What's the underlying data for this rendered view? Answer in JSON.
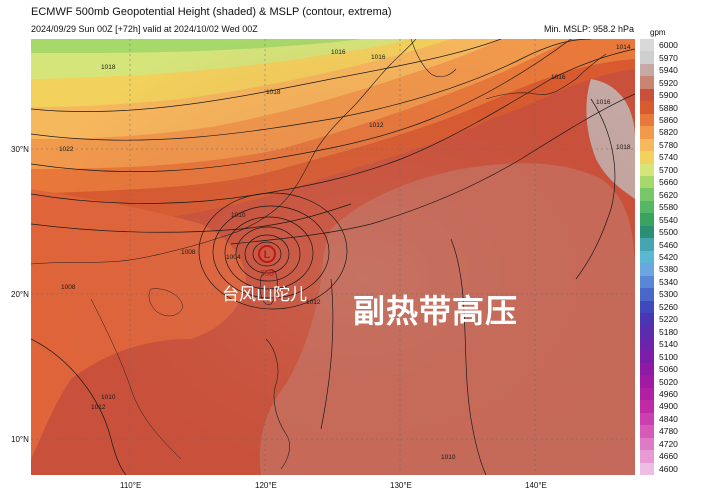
{
  "header": {
    "title": "ECMWF 500mb Geopotential Height (shaded) & MSLP (contour, extrema)",
    "subtitle": "2024/09/29 Sun 00Z [+72h] valid at 2024/10/02 Wed 00Z",
    "min_mslp": "Min. MSLP: 958.2 hPa"
  },
  "map": {
    "lat_labels": [
      "30°N",
      "20°N",
      "10°N"
    ],
    "lon_labels": [
      "110°E",
      "120°E",
      "130°E",
      "140°E"
    ],
    "low_marker": "L",
    "low_value": "958",
    "typhoon_label": "台风山陀儿",
    "high_label": "副热带高压",
    "isobar_labels": [
      "1018",
      "1016",
      "1022",
      "1018",
      "1012",
      "1010",
      "1004",
      "1008",
      "1016",
      "1014",
      "1012",
      "1016",
      "1016",
      "1018",
      "1010",
      "1012",
      "1010",
      "1008"
    ]
  },
  "colorbar": {
    "unit": "gpm",
    "ticks": [
      "6000",
      "5970",
      "5940",
      "5920",
      "5900",
      "5880",
      "5860",
      "5820",
      "5780",
      "5740",
      "5700",
      "5660",
      "5620",
      "5580",
      "5540",
      "5500",
      "5460",
      "5420",
      "5380",
      "5340",
      "5300",
      "5260",
      "5220",
      "5180",
      "5140",
      "5100",
      "5060",
      "5020",
      "4960",
      "4900",
      "4840",
      "4780",
      "4720",
      "4660",
      "4600"
    ],
    "colors": [
      "#d9d9d9",
      "#cfcfcf",
      "#c4a9a5",
      "#c98474",
      "#c9503a",
      "#d85a2e",
      "#e8793a",
      "#f19a4c",
      "#f6b85d",
      "#f2d25d",
      "#d5e57a",
      "#a6d96a",
      "#78c768",
      "#55b765",
      "#3aa35f",
      "#2b8f73",
      "#43a6b0",
      "#5ab7d4",
      "#6aa6df",
      "#5a86d6",
      "#4a66c9",
      "#3f48bc",
      "#4a35b4",
      "#5a2daf",
      "#6b24ac",
      "#7c1ea9",
      "#8e1aa6",
      "#a01aa3",
      "#b11fa3",
      "#c02aa6",
      "#cc3fae",
      "#d65bb8",
      "#df7bc5",
      "#e79ad3",
      "#efbde2"
    ]
  }
}
